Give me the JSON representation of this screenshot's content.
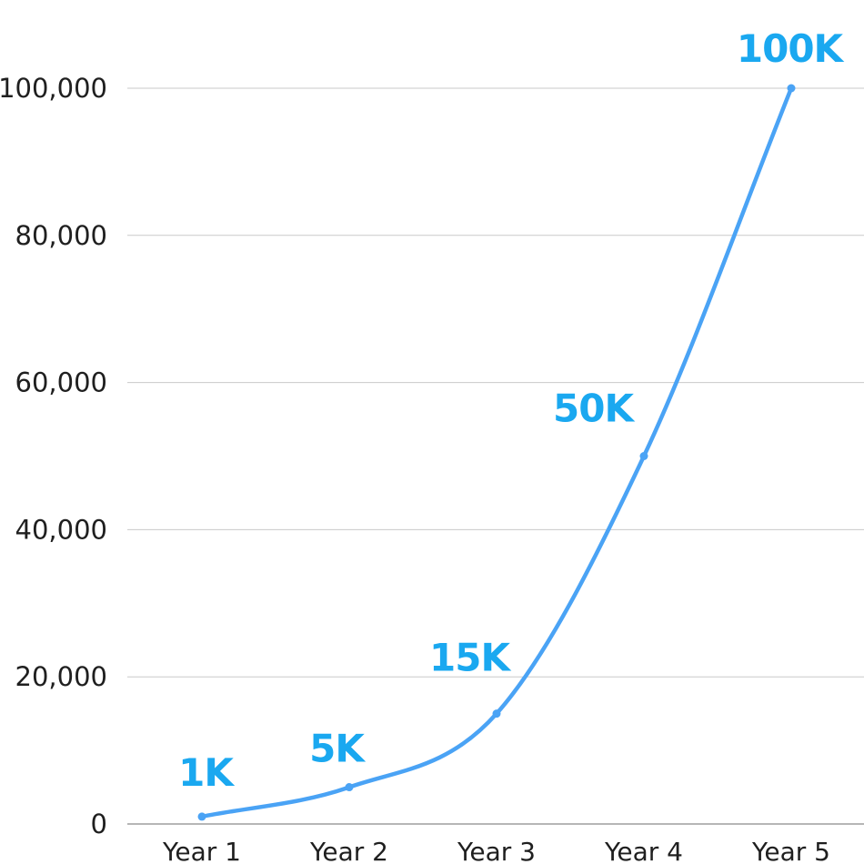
{
  "chart_data": {
    "type": "line",
    "categories": [
      "Year 1",
      "Year 2",
      "Year 3",
      "Year 4",
      "Year 5"
    ],
    "series": [
      {
        "values": [
          1000,
          5000,
          15000,
          50000,
          100000
        ],
        "data_labels": [
          "1K",
          "5K",
          "15K",
          "50K",
          "100K"
        ],
        "color": "#4aa3f5"
      }
    ],
    "ylim": [
      0,
      100000
    ],
    "y_ticks": [
      0,
      20000,
      40000,
      60000,
      80000,
      100000
    ],
    "y_tick_labels": [
      "0",
      "20,000",
      "40,000",
      "60,000",
      "80,000",
      "100,000"
    ],
    "label_color": "#1aa8f0",
    "grid": true,
    "smooth": true
  }
}
